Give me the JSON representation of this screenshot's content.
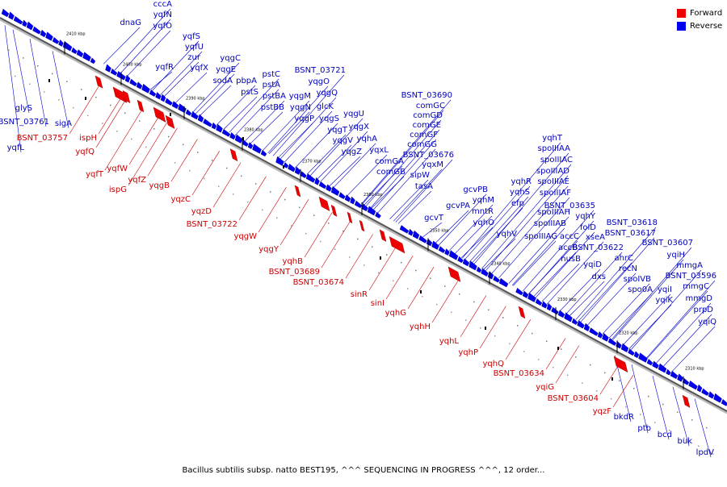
{
  "legend": {
    "forward_label": "Forward",
    "reverse_label": "Reverse",
    "forward_color": "#ee0000",
    "reverse_color": "#0000ee"
  },
  "caption": "Bacillus subtilis subsp. natto BEST195, ^^^ SEQUENCING IN PROGRESS ^^^, 12 order...",
  "ticks": [
    "2410 kbp",
    "2400 kbp",
    "2390 kbp",
    "2380 kbp",
    "2370 kbp",
    "2360 kbp",
    "2350 kbp",
    "2340 kbp",
    "2330 kbp",
    "2320 kbp",
    "2310 kbp"
  ],
  "reverse_genes": [
    "cccA",
    "yqfN",
    "yqfO",
    "dnaG",
    "yqfS",
    "yqfU",
    "zur",
    "yqfX",
    "yqfR",
    "yqgC",
    "yqgE",
    "sodA",
    "pbpA",
    "pstS",
    "pstC",
    "pstA",
    "pstBA",
    "pstBB",
    "BSNT_03721",
    "yqgO",
    "yqgQ",
    "yqgM",
    "yqgN",
    "glcK",
    "yqgP",
    "yqgU",
    "yqgS",
    "yqgX",
    "yqgT",
    "yqgV",
    "yqhA",
    "yqgZ",
    "yqxL",
    "BSNT_03690",
    "comGC",
    "comGD",
    "comGE",
    "comGF",
    "comGG",
    "BSNT_03676",
    "comGA",
    "yqxM",
    "comGB",
    "sipW",
    "tasA",
    "yqhT",
    "spoIIIAA",
    "spoIIIAC",
    "spoIIIAD",
    "spoIIIAE",
    "yqhR",
    "yqhS",
    "spoIIIAF",
    "efp",
    "spoIIIAH",
    "yqhV",
    "spoIIIAB",
    "spoIIIAG",
    "BSNT_03635",
    "yqhY",
    "folD",
    "accC",
    "xseA",
    "accB",
    "BSNT_03622",
    "nusB",
    "yqiD",
    "dxs",
    "ahrC",
    "recN",
    "BSNT_03618",
    "BSNT_03617",
    "spoIVB",
    "spo0A",
    "BSNT_03607",
    "yqiH",
    "mmgA",
    "BSNT_03596",
    "yqiI",
    "mmgC",
    "yqiK",
    "mmgD",
    "prpD",
    "yqiQ",
    "gcvPB",
    "yqhM",
    "gcvPA",
    "mntR",
    "yqhO",
    "gcvT",
    "glyS",
    "BSNT_03761",
    "sigA",
    "yqfL",
    "bkdR",
    "ptb",
    "bcd",
    "buk",
    "lpdV"
  ],
  "forward_genes": [
    "ispH",
    "BSNT_03757",
    "yqfQ",
    "yqfT",
    "yqfW",
    "ispG",
    "yqfZ",
    "yqgB",
    "yqzC",
    "yqzD",
    "BSNT_03722",
    "yqgW",
    "yqgY",
    "yqhB",
    "BSNT_03689",
    "BSNT_03674",
    "sinR",
    "sinI",
    "yqhG",
    "yqhH",
    "yqhL",
    "yqhP",
    "yqhQ",
    "BSNT_03634",
    "yqiG",
    "BSNT_03604",
    "yqzF"
  ]
}
